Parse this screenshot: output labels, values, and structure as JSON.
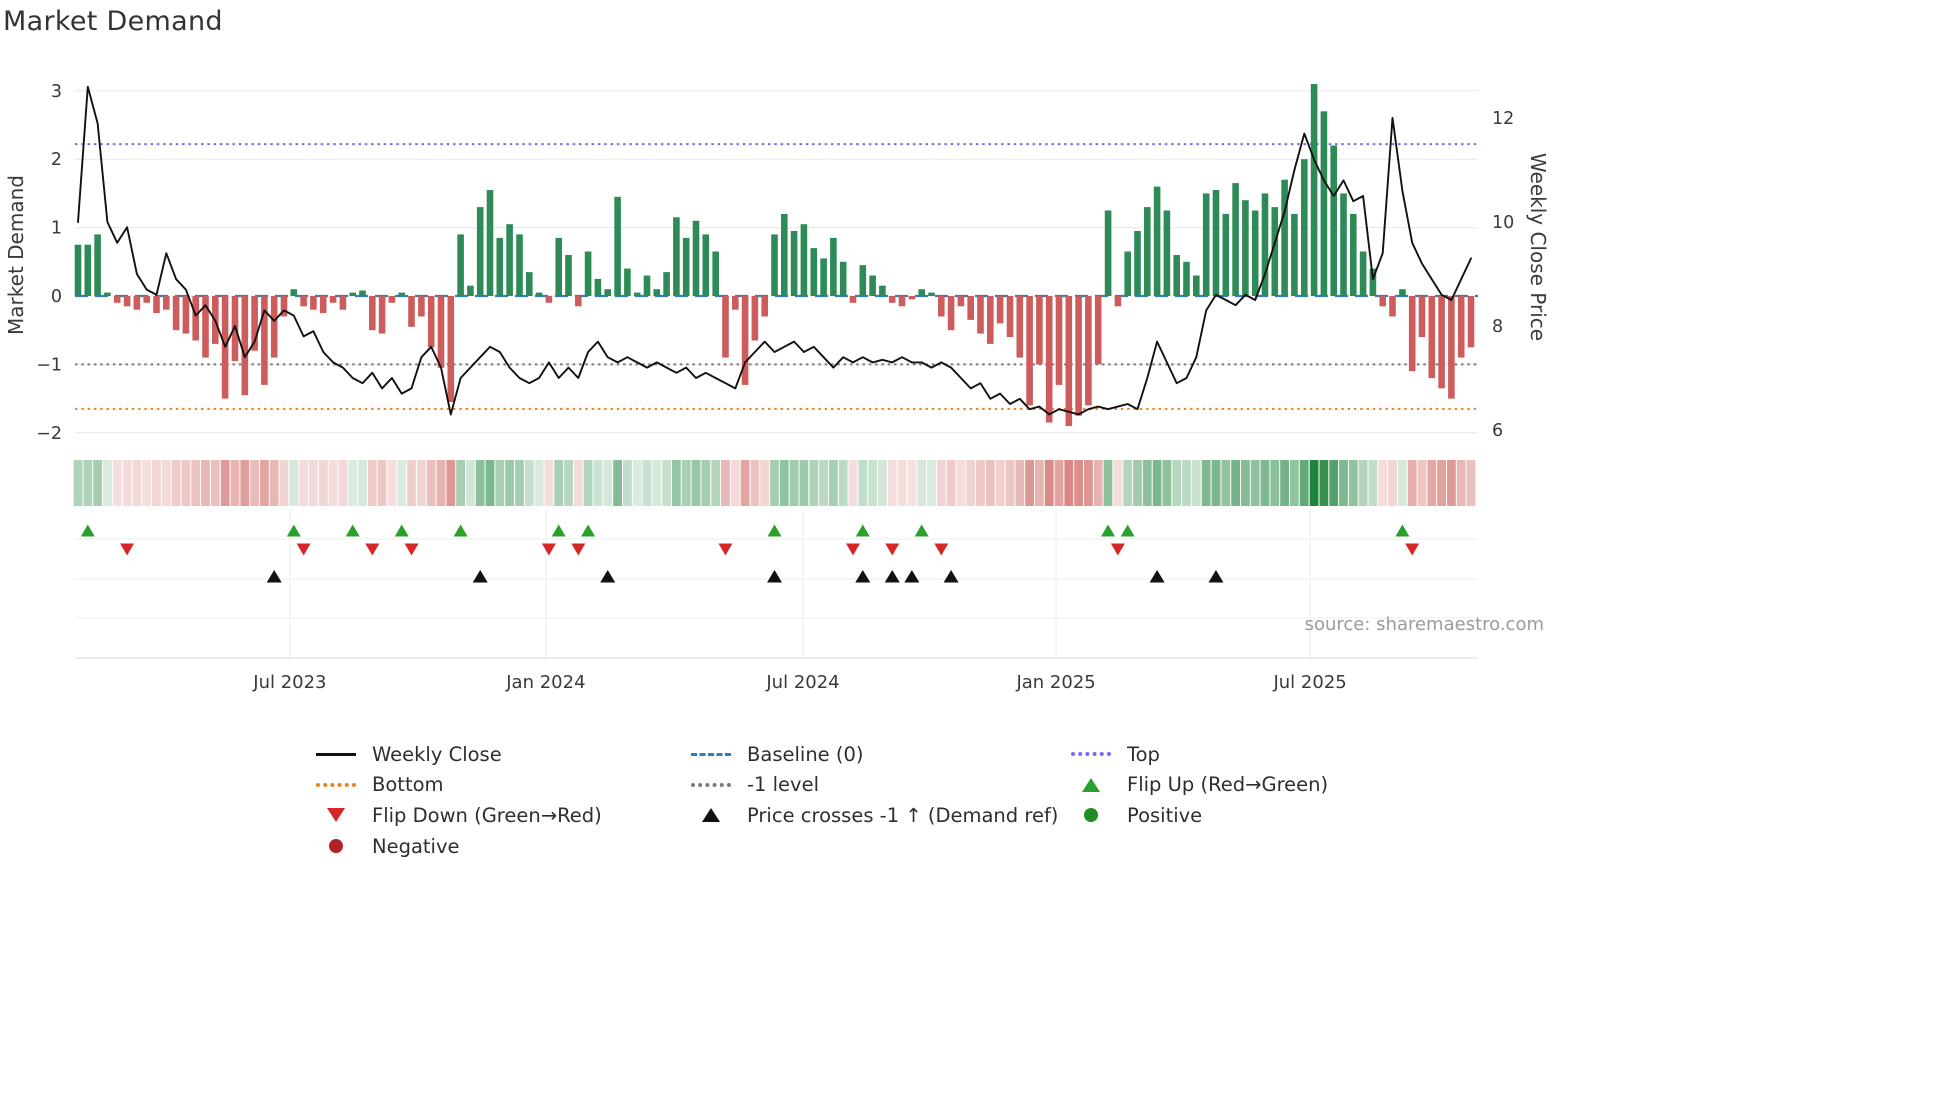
{
  "title": "Market Demand",
  "source": "source: sharemaestro.com",
  "axes": {
    "left_label": "Market Demand",
    "right_label": "Weekly Close Price",
    "left_ticks": [
      3,
      2,
      1,
      0,
      -1,
      -2
    ],
    "right_ticks": [
      12,
      10,
      8,
      6
    ]
  },
  "colors": {
    "bar_positive": "#2e8b57",
    "bar_negative": "#cd5c5c",
    "price_line": "#111111",
    "baseline": "#2f7fb8",
    "top_line": "#7b68ee",
    "bottom_line": "#e8851e",
    "minus_one_line": "#7a7a7a",
    "flip_up": "#2ca02c",
    "flip_down": "#d62728",
    "price_cross": "#111111",
    "positive_dot": "#228b22",
    "negative_dot": "#b22222"
  },
  "chart_data": {
    "type": "combo",
    "x_unit": "week",
    "n_weeks": 143,
    "x_tick_labels": [
      "Jul 2023",
      "Jan 2024",
      "Jul 2024",
      "Jan 2025",
      "Jul 2025"
    ],
    "x_tick_week_positions": [
      21.6,
      47.7,
      73.9,
      99.7,
      125.6
    ],
    "left_axis_range": [
      -2.2,
      3.45
    ],
    "right_axis_range": [
      5.7,
      13.1
    ],
    "grid": true,
    "series": [
      {
        "name": "Market Demand",
        "type": "bar",
        "axis": "left",
        "positive_color": "#2e8b57",
        "negative_color": "#cd5c5c",
        "values": [
          0.75,
          0.75,
          0.9,
          0.05,
          -0.1,
          -0.15,
          -0.2,
          -0.1,
          -0.25,
          -0.2,
          -0.5,
          -0.55,
          -0.65,
          -0.9,
          -0.7,
          -1.5,
          -0.95,
          -1.45,
          -0.8,
          -1.3,
          -0.9,
          -0.3,
          0.1,
          -0.15,
          -0.2,
          -0.25,
          -0.1,
          -0.2,
          0.05,
          0.08,
          -0.5,
          -0.55,
          -0.1,
          0.05,
          -0.45,
          -0.3,
          -0.75,
          -1.05,
          -1.55,
          0.9,
          0.15,
          1.3,
          1.55,
          0.85,
          1.05,
          0.9,
          0.35,
          0.05,
          -0.1,
          0.85,
          0.6,
          -0.15,
          0.65,
          0.25,
          0.1,
          1.45,
          0.4,
          0.05,
          0.3,
          0.1,
          0.35,
          1.15,
          0.85,
          1.1,
          0.9,
          0.65,
          -0.9,
          -0.2,
          -1.3,
          -0.65,
          -0.3,
          0.9,
          1.2,
          0.95,
          1.05,
          0.7,
          0.55,
          0.85,
          0.5,
          -0.1,
          0.45,
          0.3,
          0.15,
          -0.1,
          -0.15,
          -0.05,
          0.1,
          0.05,
          -0.3,
          -0.5,
          -0.15,
          -0.35,
          -0.55,
          -0.7,
          -0.4,
          -0.6,
          -0.9,
          -1.6,
          -1.0,
          -1.85,
          -1.3,
          -1.9,
          -1.75,
          -1.6,
          -1.0,
          1.25,
          -0.15,
          0.65,
          0.95,
          1.3,
          1.6,
          1.25,
          0.6,
          0.5,
          0.3,
          1.5,
          1.55,
          1.2,
          1.65,
          1.4,
          1.25,
          1.5,
          1.3,
          1.7,
          1.2,
          2.0,
          3.1,
          2.7,
          2.2,
          1.5,
          1.2,
          0.65,
          0.4,
          -0.15,
          -0.3,
          0.1,
          -1.1,
          -0.6,
          -1.2,
          -1.35,
          -1.5,
          -0.9,
          -0.75
        ]
      },
      {
        "name": "Weekly Close",
        "type": "line",
        "axis": "right",
        "color": "#111111",
        "values": [
          10.0,
          12.6,
          11.9,
          10.0,
          9.6,
          9.9,
          9.0,
          8.7,
          8.6,
          9.4,
          8.9,
          8.7,
          8.2,
          8.4,
          8.1,
          7.6,
          8.0,
          7.4,
          7.7,
          8.3,
          8.1,
          8.3,
          8.2,
          7.8,
          7.9,
          7.5,
          7.3,
          7.2,
          7.0,
          6.9,
          7.1,
          6.8,
          7.0,
          6.7,
          6.8,
          7.4,
          7.6,
          7.2,
          6.3,
          7.0,
          7.2,
          7.4,
          7.6,
          7.5,
          7.2,
          7.0,
          6.9,
          7.0,
          7.3,
          7.0,
          7.2,
          7.0,
          7.5,
          7.7,
          7.4,
          7.3,
          7.4,
          7.3,
          7.2,
          7.3,
          7.2,
          7.1,
          7.2,
          7.0,
          7.1,
          7.0,
          6.9,
          6.8,
          7.3,
          7.5,
          7.7,
          7.5,
          7.6,
          7.7,
          7.5,
          7.6,
          7.4,
          7.2,
          7.4,
          7.3,
          7.4,
          7.3,
          7.35,
          7.3,
          7.4,
          7.3,
          7.3,
          7.2,
          7.3,
          7.2,
          7.0,
          6.8,
          6.9,
          6.6,
          6.7,
          6.5,
          6.6,
          6.4,
          6.45,
          6.3,
          6.4,
          6.35,
          6.3,
          6.4,
          6.45,
          6.4,
          6.45,
          6.5,
          6.4,
          7.0,
          7.7,
          7.3,
          6.9,
          7.0,
          7.4,
          8.3,
          8.6,
          8.5,
          8.4,
          8.6,
          8.5,
          9.0,
          9.6,
          10.2,
          11.0,
          11.7,
          11.2,
          10.8,
          10.5,
          10.8,
          10.4,
          10.5,
          8.9,
          9.4,
          12.0,
          10.6,
          9.6,
          9.2,
          8.9,
          8.6,
          8.5,
          8.9,
          9.3
        ]
      }
    ],
    "reference_lines": [
      {
        "name": "Baseline (0)",
        "value": 0,
        "style": "dashed",
        "color": "#2f7fb8"
      },
      {
        "name": "Top",
        "value": 2.22,
        "style": "dotted",
        "color": "#7b68ee"
      },
      {
        "name": "-1 level",
        "value": -1,
        "style": "dotted",
        "color": "#7a7a7a"
      },
      {
        "name": "Bottom",
        "value": -1.65,
        "style": "dotted",
        "color": "#e8851e"
      }
    ],
    "heatmap": {
      "description": "weekly demand intensity strip, green positive / red negative, opacity scaled by magnitude",
      "derived_from": "Market Demand values"
    },
    "markers": {
      "flip_up_weeks": [
        1,
        22,
        28,
        33,
        39,
        49,
        52,
        71,
        80,
        86,
        105,
        107,
        135
      ],
      "flip_down_weeks": [
        5,
        23,
        30,
        34,
        48,
        51,
        66,
        79,
        83,
        88,
        106,
        136
      ],
      "price_cross_weeks": [
        20,
        41,
        54,
        71,
        80,
        83,
        85,
        89,
        110,
        116
      ]
    }
  },
  "legend": {
    "items": [
      {
        "label": "Weekly Close",
        "swatch": "line-solid",
        "color": "#111111"
      },
      {
        "label": "Baseline (0)",
        "swatch": "line-dashed",
        "color": "#2f7fb8"
      },
      {
        "label": "Top",
        "swatch": "line-dotted",
        "color": "#7b68ee"
      },
      {
        "label": "Bottom",
        "swatch": "line-dotted",
        "color": "#e8851e"
      },
      {
        "label": "-1 level",
        "swatch": "line-dotted",
        "color": "#7a7a7a"
      },
      {
        "label": "Flip Up (Red→Green)",
        "swatch": "triangle-up",
        "color": "#2ca02c"
      },
      {
        "label": "Flip Down (Green→Red)",
        "swatch": "triangle-down",
        "color": "#d62728"
      },
      {
        "label": "Price crosses -1 ↑ (Demand ref)",
        "swatch": "triangle-up",
        "color": "#111111"
      },
      {
        "label": "Positive",
        "swatch": "circle",
        "color": "#228b22"
      },
      {
        "label": "Negative",
        "swatch": "circle",
        "color": "#b22222"
      }
    ]
  }
}
